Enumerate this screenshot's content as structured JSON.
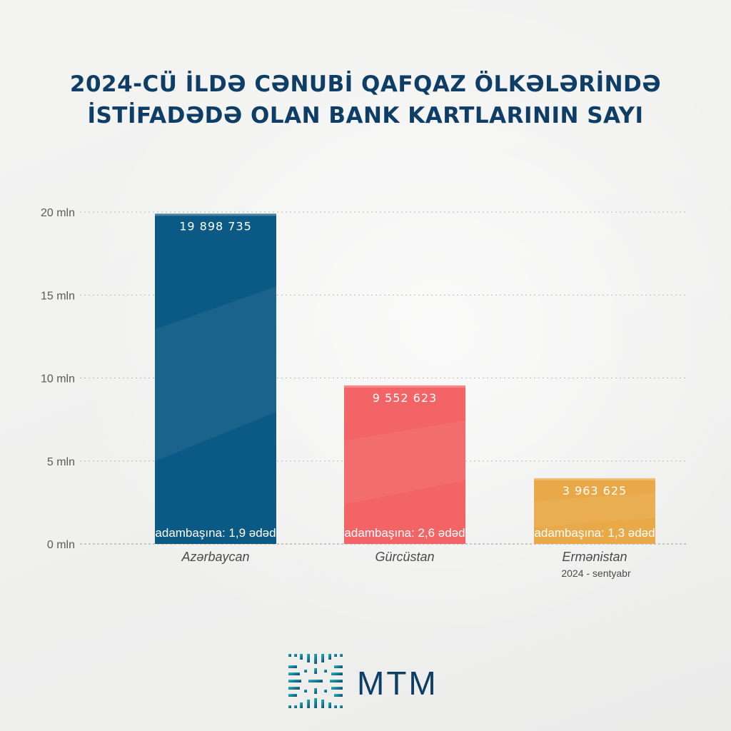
{
  "title_line1": "2024-CÜ İLDƏ CƏNUBİ QAFQAZ ÖLKƏLƏRİNDƏ",
  "title_line2": "İSTİFADƏDƏ OLAN BANK KARTLARININ SAYI",
  "logo_text": "MTM",
  "colors": {
    "title": "#0e3d66",
    "azerbaycan": "#0b5a86",
    "gurcustan": "#f26465",
    "ermenistan": "#e9a948"
  },
  "chart_data": {
    "type": "bar",
    "title": "2024-CÜ İLDƏ CƏNUBİ QAFQAZ ÖLKƏLƏRİNDƏ İSTİFADƏDƏ OLAN BANK KARTLARININ SAYI",
    "categories": [
      "Azərbaycan",
      "Gürcüstan",
      "Ermənistan"
    ],
    "category_sublabels": [
      "",
      "",
      "2024 - sentyabr"
    ],
    "values": [
      19898735,
      9552623,
      3963625
    ],
    "value_labels": [
      "19 898 735",
      "9 552 623",
      "3 963 625"
    ],
    "per_capita_labels": [
      "adambaşına: 1,9 ədəd",
      "adambaşına: 2,6 ədəd",
      "adambaşına: 1,3 ədəd"
    ],
    "bar_colors": [
      "#0b5a86",
      "#f26465",
      "#e9a948"
    ],
    "yticks": [
      0,
      5000000,
      10000000,
      15000000,
      20000000
    ],
    "ytick_labels": [
      "0 mln",
      "5 mln",
      "10 mln",
      "15 mln",
      "20 mln"
    ],
    "ylim": [
      0,
      20000000
    ],
    "grid": true,
    "xlabel": "",
    "ylabel": ""
  }
}
